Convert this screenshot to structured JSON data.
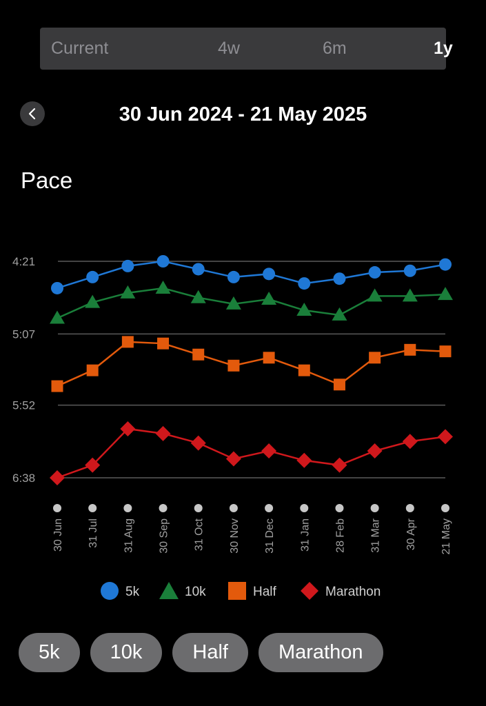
{
  "range_tabs": [
    {
      "label": "Current",
      "active": false
    },
    {
      "label": "4w",
      "active": false
    },
    {
      "label": "6m",
      "active": false
    },
    {
      "label": "1y",
      "active": true
    }
  ],
  "header": {
    "back_icon": "chevron-left-icon",
    "date_range": "30 Jun 2024 - 21 May 2025"
  },
  "section_title": "Pace",
  "chart_data": {
    "type": "line",
    "y_axis": {
      "ticks": [
        "4:21",
        "5:07",
        "5:52",
        "6:38"
      ],
      "tick_seconds": [
        261,
        307,
        352,
        398
      ],
      "inverted": true,
      "grid": true
    },
    "categories": [
      "30 Jun",
      "31 Jul",
      "31 Aug",
      "30 Sep",
      "31 Oct",
      "30 Nov",
      "31 Dec",
      "31 Jan",
      "28 Feb",
      "31 Mar",
      "30 Apr",
      "21 May"
    ],
    "legend_position": "bottom",
    "series": [
      {
        "name": "5k",
        "marker": "circle",
        "color": "#1f78d6",
        "values": [
          278,
          271,
          264,
          261,
          266,
          271,
          269,
          275,
          272,
          268,
          267,
          263
        ]
      },
      {
        "name": "10k",
        "marker": "triangle",
        "color": "#1a7f3a",
        "values": [
          297,
          287,
          281,
          278,
          284,
          288,
          285,
          292,
          295,
          283,
          283,
          282
        ]
      },
      {
        "name": "Half",
        "marker": "square",
        "color": "#e35a0c",
        "values": [
          340,
          330,
          312,
          313,
          320,
          327,
          322,
          330,
          339,
          322,
          317,
          318
        ]
      },
      {
        "name": "Marathon",
        "marker": "diamond",
        "color": "#d0181c",
        "values": [
          398,
          390,
          367,
          370,
          376,
          386,
          381,
          387,
          390,
          381,
          375,
          372
        ]
      }
    ]
  },
  "filter_pills": [
    "5k",
    "10k",
    "Half",
    "Marathon"
  ]
}
